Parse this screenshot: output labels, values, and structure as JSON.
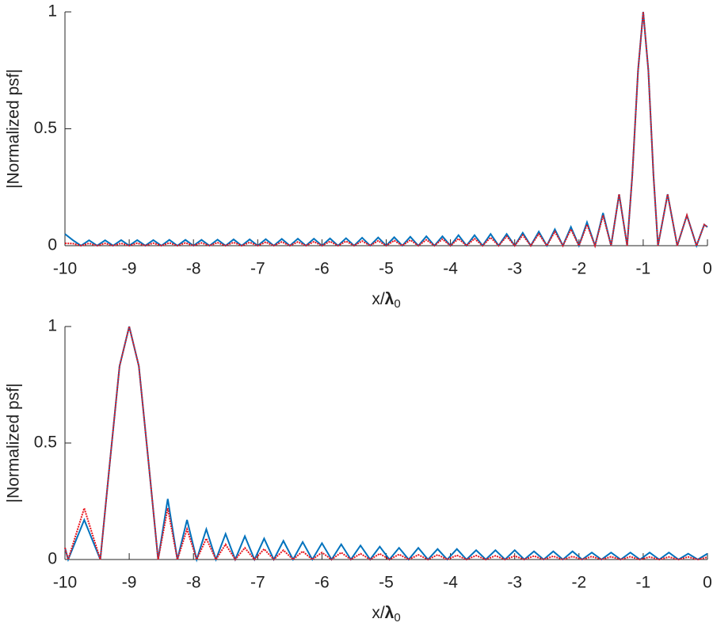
{
  "chart_data": [
    {
      "type": "line",
      "ylabel": "|Normalized psf|",
      "xlabel": [
        "x/",
        "λ",
        "0"
      ],
      "xlim": [
        -10,
        0
      ],
      "ylim": [
        0,
        1
      ],
      "xticks": [
        -10,
        -9,
        -8,
        -7,
        -6,
        -5,
        -4,
        -3,
        -2,
        -1,
        0
      ],
      "yticks": [
        0,
        0.5,
        1
      ],
      "x": [
        -10,
        -9.875,
        -9.75,
        -9.625,
        -9.5,
        -9.375,
        -9.25,
        -9.125,
        -9,
        -8.875,
        -8.75,
        -8.625,
        -8.5,
        -8.375,
        -8.25,
        -8.125,
        -8,
        -7.875,
        -7.75,
        -7.625,
        -7.5,
        -7.375,
        -7.25,
        -7.125,
        -7,
        -6.875,
        -6.75,
        -6.625,
        -6.5,
        -6.375,
        -6.25,
        -6.125,
        -6,
        -5.875,
        -5.75,
        -5.625,
        -5.5,
        -5.375,
        -5.25,
        -5.125,
        -5,
        -4.875,
        -4.75,
        -4.625,
        -4.5,
        -4.375,
        -4.25,
        -4.125,
        -4,
        -3.875,
        -3.75,
        -3.625,
        -3.5,
        -3.375,
        -3.25,
        -3.125,
        -3,
        -2.875,
        -2.75,
        -2.625,
        -2.5,
        -2.375,
        -2.25,
        -2.125,
        -2,
        -1.875,
        -1.75,
        -1.625,
        -1.5,
        -1.375,
        -1.25,
        -1.17,
        -1.08,
        -1,
        -0.92,
        -0.84,
        -0.77,
        -0.62,
        -0.47,
        -0.32,
        -0.17,
        -0.05,
        0
      ],
      "series": [
        {
          "color": "#0072bd",
          "linestyle": "solid",
          "values": [
            0.05,
            0.023,
            0,
            0.023,
            0,
            0.023,
            0,
            0.024,
            0,
            0.024,
            0,
            0.024,
            0,
            0.025,
            0,
            0.025,
            0,
            0.025,
            0,
            0.026,
            0,
            0.027,
            0,
            0.027,
            0,
            0.028,
            0,
            0.029,
            0,
            0.03,
            0,
            0.03,
            0,
            0.031,
            0,
            0.032,
            0,
            0.034,
            0,
            0.035,
            0,
            0.036,
            0,
            0.038,
            0,
            0.04,
            0,
            0.04,
            0,
            0.045,
            0,
            0.045,
            0,
            0.05,
            0,
            0.05,
            0,
            0.055,
            0,
            0.06,
            0,
            0.07,
            0,
            0.08,
            0,
            0.1,
            0,
            0.14,
            0,
            0.22,
            0,
            0.3,
            0.75,
            1,
            0.75,
            0.3,
            0,
            0.22,
            0,
            0.13,
            0,
            0.09,
            0.08
          ]
        },
        {
          "color": "#e8141c",
          "linestyle": "dotted",
          "values": [
            0.01,
            0.009,
            0,
            0.01,
            0,
            0.01,
            0,
            0.01,
            0,
            0.011,
            0,
            0.011,
            0,
            0.012,
            0,
            0.012,
            0,
            0.012,
            0,
            0.013,
            0,
            0.014,
            0,
            0.014,
            0,
            0.015,
            0,
            0.016,
            0,
            0.016,
            0,
            0.017,
            0,
            0.018,
            0,
            0.019,
            0,
            0.02,
            0,
            0.021,
            0,
            0.022,
            0,
            0.024,
            0,
            0.025,
            0,
            0.028,
            0,
            0.03,
            0,
            0.03,
            0,
            0.035,
            0,
            0.04,
            0,
            0.045,
            0,
            0.05,
            0,
            0.06,
            0,
            0.07,
            0,
            0.09,
            0,
            0.13,
            0,
            0.22,
            0,
            0.3,
            0.75,
            1,
            0.75,
            0.3,
            0,
            0.22,
            0,
            0.13,
            0,
            0.09,
            0.08
          ]
        }
      ]
    },
    {
      "type": "line",
      "ylabel": "|Normalized psf|",
      "xlabel": [
        "x/",
        "λ",
        "0"
      ],
      "xlim": [
        -10,
        0
      ],
      "ylim": [
        0,
        1
      ],
      "xticks": [
        -10,
        -9,
        -8,
        -7,
        -6,
        -5,
        -4,
        -3,
        -2,
        -1,
        0
      ],
      "yticks": [
        0,
        0.5,
        1
      ],
      "x": [
        -10,
        -9.95,
        -9.7,
        -9.45,
        -9.3,
        -9.15,
        -9,
        -8.85,
        -8.7,
        -8.55,
        -8.4,
        -8.25,
        -8.1,
        -7.95,
        -7.8,
        -7.65,
        -7.5,
        -7.35,
        -7.2,
        -7.05,
        -6.9,
        -6.75,
        -6.6,
        -6.45,
        -6.3,
        -6.15,
        -6,
        -5.85,
        -5.7,
        -5.55,
        -5.4,
        -5.25,
        -5.1,
        -4.95,
        -4.8,
        -4.65,
        -4.5,
        -4.35,
        -4.2,
        -4.05,
        -3.9,
        -3.75,
        -3.6,
        -3.45,
        -3.3,
        -3.15,
        -3,
        -2.85,
        -2.7,
        -2.55,
        -2.4,
        -2.25,
        -2.1,
        -1.95,
        -1.8,
        -1.65,
        -1.5,
        -1.35,
        -1.2,
        -1.05,
        -0.9,
        -0.75,
        -0.6,
        -0.45,
        -0.3,
        -0.15,
        0
      ],
      "series": [
        {
          "color": "#0072bd",
          "linestyle": "solid",
          "values": [
            0.05,
            0,
            0.17,
            0,
            0.42,
            0.83,
            1,
            0.83,
            0.42,
            0,
            0.26,
            0,
            0.17,
            0,
            0.13,
            0,
            0.11,
            0,
            0.1,
            0,
            0.09,
            0,
            0.08,
            0,
            0.075,
            0,
            0.07,
            0,
            0.065,
            0,
            0.06,
            0,
            0.055,
            0,
            0.05,
            0,
            0.05,
            0,
            0.045,
            0,
            0.045,
            0,
            0.04,
            0,
            0.04,
            0,
            0.04,
            0,
            0.035,
            0,
            0.035,
            0,
            0.035,
            0,
            0.03,
            0,
            0.03,
            0,
            0.03,
            0,
            0.03,
            0,
            0.03,
            0,
            0.025,
            0,
            0.025
          ]
        },
        {
          "color": "#e8141c",
          "linestyle": "dotted",
          "values": [
            0.05,
            0,
            0.22,
            0,
            0.42,
            0.83,
            1,
            0.83,
            0.42,
            0,
            0.22,
            0,
            0.13,
            0,
            0.09,
            0,
            0.065,
            0,
            0.05,
            0,
            0.045,
            0,
            0.04,
            0,
            0.035,
            0,
            0.03,
            0,
            0.03,
            0,
            0.025,
            0,
            0.025,
            0,
            0.022,
            0,
            0.02,
            0,
            0.02,
            0,
            0.018,
            0,
            0.017,
            0,
            0.016,
            0,
            0.015,
            0,
            0.015,
            0,
            0.014,
            0,
            0.013,
            0,
            0.013,
            0,
            0.012,
            0,
            0.012,
            0,
            0.011,
            0,
            0.011,
            0,
            0.011,
            0,
            0.01
          ]
        }
      ]
    }
  ]
}
